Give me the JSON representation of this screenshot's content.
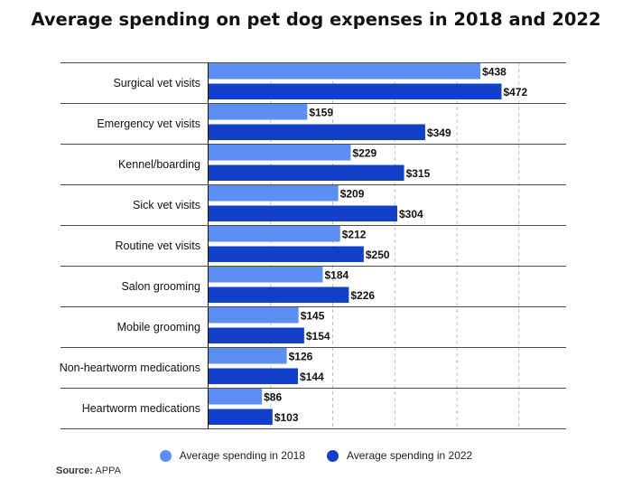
{
  "chart_data": {
    "type": "bar",
    "orientation": "horizontal",
    "title": "Average spending on pet dog expenses in 2018 and 2022",
    "categories": [
      "Surgical vet visits",
      "Emergency vet visits",
      "Kennel/boarding",
      "Sick vet visits",
      "Routine vet visits",
      "Salon grooming",
      "Mobile grooming",
      "Non-heartworm medications",
      "Heartworm medications"
    ],
    "series": [
      {
        "name": "Average spending in 2018",
        "color": "#5b8ff5",
        "values": [
          438,
          159,
          229,
          209,
          212,
          184,
          145,
          126,
          86
        ],
        "labels": [
          "$438",
          "$159",
          "$229",
          "$209",
          "$212",
          "$184",
          "$145",
          "$126",
          "$86"
        ]
      },
      {
        "name": "Average spending in 2022",
        "color": "#1240c8",
        "values": [
          472,
          349,
          315,
          304,
          250,
          226,
          154,
          144,
          103
        ],
        "labels": [
          "$472",
          "$349",
          "$315",
          "$304",
          "$250",
          "$226",
          "$154",
          "$144",
          "$103"
        ]
      }
    ],
    "xlim": [
      0,
      500
    ],
    "xlabel": "",
    "ylabel": "",
    "legend": "bottom-center",
    "grid": "vertical dashed"
  },
  "source": {
    "label": "Source:",
    "text": "APPA"
  }
}
